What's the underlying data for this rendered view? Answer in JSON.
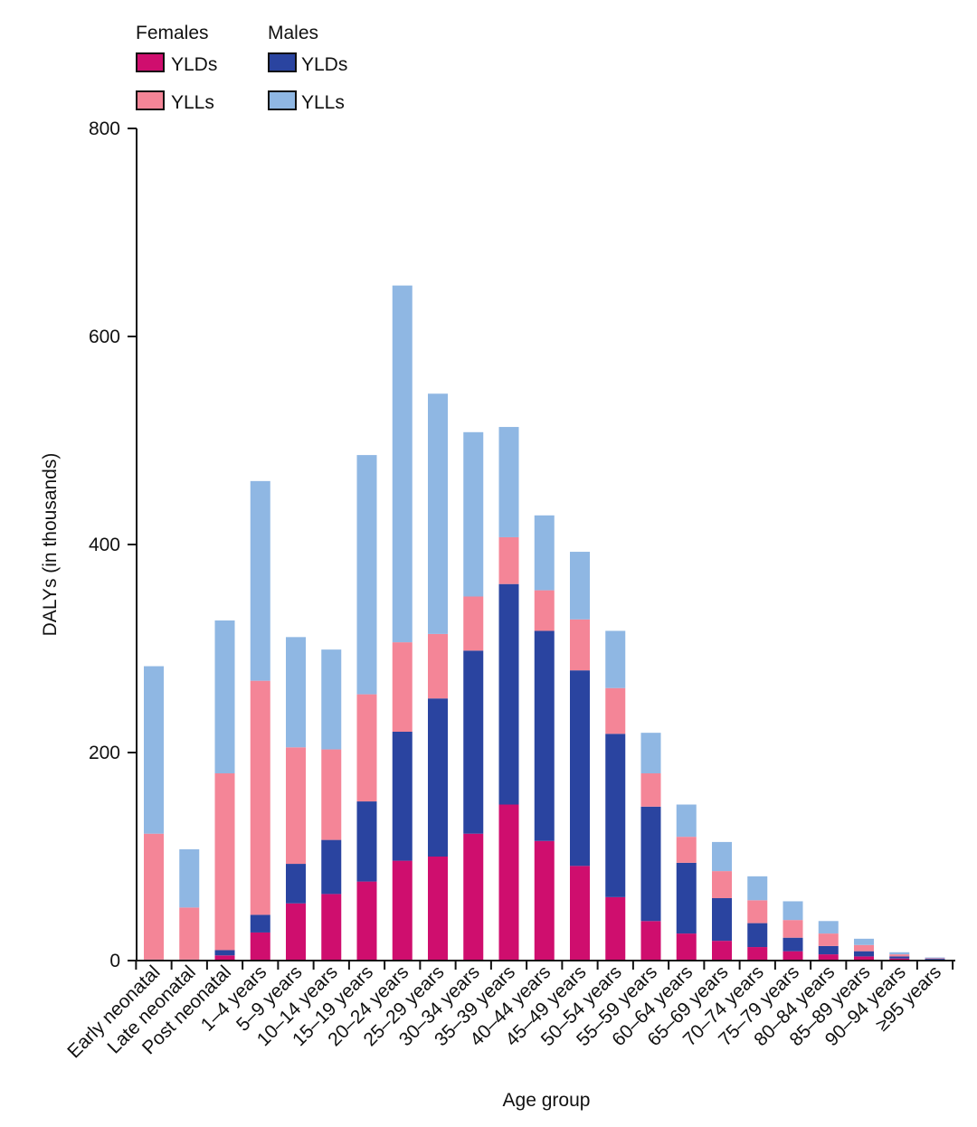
{
  "chart_data": {
    "type": "bar",
    "stacked": true,
    "title": "",
    "xlabel": "Age group",
    "ylabel": "DALYs (in thousands)",
    "ylim": [
      0,
      800
    ],
    "yticks": [
      0,
      200,
      400,
      600,
      800
    ],
    "grid": false,
    "legend_position": "top-left",
    "legend_groups": [
      {
        "label": "Females",
        "entries": [
          "YLDs",
          "YLLs"
        ]
      },
      {
        "label": "Males",
        "entries": [
          "YLDs",
          "YLLs"
        ]
      }
    ],
    "categories": [
      "Early neonatal",
      "Late neonatal",
      "Post neonatal",
      "1–4 years",
      "5–9 years",
      "10–14 years",
      "15–19 years",
      "20–24 years",
      "25–29 years",
      "30–34 years",
      "35–39 years",
      "40–44 years",
      "45–49 years",
      "50–54 years",
      "55–59 years",
      "60–64 years",
      "65–69 years",
      "70–74 years",
      "75–79 years",
      "80–84 years",
      "85–89 years",
      "90–94 years",
      "≥95 years"
    ],
    "series": [
      {
        "name": "Females YLDs",
        "color": "#cf0e6e",
        "values": [
          0.5,
          0.5,
          5,
          27,
          55,
          64,
          76,
          96,
          100,
          122,
          150,
          115,
          91,
          61,
          38,
          26,
          19,
          13,
          9,
          6,
          4,
          2,
          1
        ]
      },
      {
        "name": "Males YLDs",
        "color": "#2a44a0",
        "values": [
          0.5,
          0.5,
          5,
          17,
          38,
          52,
          77,
          124,
          152,
          176,
          212,
          202,
          188,
          157,
          110,
          68,
          41,
          23,
          13,
          8,
          5,
          2,
          1
        ]
      },
      {
        "name": "Females YLLs",
        "color": "#f48597",
        "values": [
          121,
          50,
          170,
          225,
          112,
          87,
          103,
          86,
          62,
          52,
          45,
          39,
          49,
          44,
          32,
          25,
          26,
          22,
          17,
          12,
          6,
          2,
          0.5
        ]
      },
      {
        "name": "Males YLLs",
        "color": "#8fb7e3",
        "values": [
          161,
          56,
          147,
          192,
          106,
          96,
          230,
          343,
          231,
          158,
          106,
          72,
          65,
          55,
          39,
          31,
          28,
          23,
          18,
          12,
          6,
          2,
          0.5
        ]
      }
    ]
  }
}
